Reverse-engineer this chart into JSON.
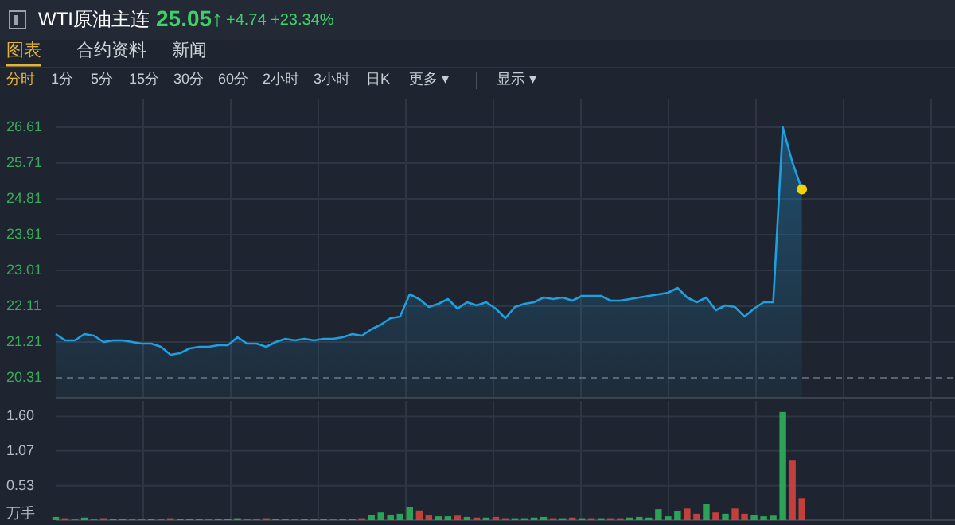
{
  "chart_data": [
    {
      "type": "area",
      "title": "WTI原油主连",
      "annotations": [
        "25.05↑",
        "+4.74",
        "+23.34%",
        "图表",
        "合约资料",
        "新闻",
        "分时",
        "1分",
        "5分",
        "15分",
        "30分",
        "60分",
        "2小时",
        "3小时",
        "日K",
        "更多 ▾",
        "显示 ▾"
      ],
      "categories": [
        null,
        null,
        null,
        null,
        null,
        null,
        null,
        null,
        null,
        null,
        null,
        null,
        null,
        null,
        null,
        null,
        null,
        null,
        null,
        null,
        null,
        null,
        null,
        null,
        null,
        null,
        null,
        null,
        null,
        null,
        null,
        null,
        null,
        null,
        null,
        null,
        null,
        null,
        null,
        null,
        null,
        null,
        null,
        null,
        null,
        null,
        null,
        null,
        null,
        null,
        null,
        null,
        null,
        null,
        null,
        null,
        null,
        null,
        null,
        null,
        null,
        null,
        null,
        null,
        null,
        null,
        null,
        null,
        null,
        null,
        null,
        null,
        null,
        null,
        null,
        null,
        null,
        null,
        null,
        null,
        null,
        null,
        null,
        null,
        null,
        null,
        null,
        null,
        null,
        null,
        null,
        null,
        null,
        null,
        null
      ],
      "series": [
        {
          "type": "area",
          "color": "#1e9fe0",
          "values": [
            21.41,
            21.25,
            21.25,
            21.41,
            21.37,
            21.21,
            21.25,
            21.25,
            21.21,
            21.17,
            21.17,
            21.09,
            20.89,
            20.93,
            21.05,
            21.09,
            21.09,
            21.13,
            21.13,
            21.33,
            21.17,
            21.17,
            21.09,
            21.21,
            21.29,
            21.25,
            21.29,
            21.25,
            21.29,
            21.29,
            21.33,
            21.41,
            21.37,
            21.53,
            21.65,
            21.81,
            21.85,
            22.41,
            22.29,
            22.09,
            22.17,
            22.29,
            22.05,
            22.21,
            22.13,
            22.21,
            22.05,
            21.81,
            22.09,
            22.17,
            22.21,
            22.33,
            22.29,
            22.33,
            22.25,
            22.37,
            22.37,
            22.37,
            22.25,
            22.25,
            22.29,
            22.33,
            22.37,
            22.41,
            22.45,
            22.57,
            22.33,
            22.21,
            22.33,
            22.01,
            22.13,
            22.09,
            21.85,
            22.05,
            22.21,
            22.21,
            26.61,
            25.73,
            25.05,
            null,
            null,
            null,
            null,
            null,
            null,
            null,
            null,
            null,
            null,
            null,
            null,
            null,
            null,
            null,
            null
          ]
        },
        {
          "type": "scatter",
          "color": "#f5d300",
          "values": [
            null,
            null,
            null,
            null,
            null,
            null,
            null,
            null,
            null,
            null,
            null,
            null,
            null,
            null,
            null,
            null,
            null,
            null,
            null,
            null,
            null,
            null,
            null,
            null,
            null,
            null,
            null,
            null,
            null,
            null,
            null,
            null,
            null,
            null,
            null,
            null,
            null,
            null,
            null,
            null,
            null,
            null,
            null,
            null,
            null,
            null,
            null,
            null,
            null,
            null,
            null,
            null,
            null,
            null,
            null,
            null,
            null,
            null,
            null,
            null,
            null,
            null,
            null,
            null,
            null,
            null,
            null,
            null,
            null,
            null,
            null,
            null,
            null,
            null,
            null,
            null,
            null,
            null,
            25.05,
            null,
            null,
            null,
            null,
            null,
            null,
            null,
            null,
            null,
            null,
            null,
            null,
            null,
            null,
            null,
            null
          ]
        }
      ],
      "ylim": [
        19.81,
        27.33
      ],
      "yticks": [
        20.31,
        21.21,
        22.11,
        23.01,
        23.91,
        24.81,
        25.71,
        26.61
      ],
      "ref_lines": [
        {
          "axis": "y",
          "value": 20.31,
          "line_style": "dashed",
          "color": "#5a6270"
        }
      ],
      "grid": true,
      "tick_labels": "y"
    },
    {
      "type": "bar",
      "categories": [
        null,
        null,
        null,
        null,
        null,
        null,
        null,
        null,
        null,
        null,
        null,
        null,
        null,
        null,
        null,
        null,
        null,
        null,
        null,
        null,
        null,
        null,
        null,
        null,
        null,
        null,
        null,
        null,
        null,
        null,
        null,
        null,
        null,
        null,
        null,
        null,
        null,
        null,
        null,
        null,
        null,
        null,
        null,
        null,
        null,
        null,
        null,
        null,
        null,
        null,
        null,
        null,
        null,
        null,
        null,
        null,
        null,
        null,
        null,
        null,
        null,
        null,
        null,
        null,
        null,
        null,
        null,
        null,
        null,
        null,
        null,
        null,
        null,
        null,
        null,
        null,
        null,
        null,
        null,
        null,
        null,
        null,
        null,
        null,
        null,
        null,
        null,
        null,
        null,
        null,
        null,
        null,
        null,
        null,
        null
      ],
      "values": [
        0.05,
        0.03,
        0.02,
        0.04,
        0.02,
        0.03,
        0.02,
        0.02,
        0.02,
        0.02,
        0.02,
        0.02,
        0.03,
        0.02,
        0.02,
        0.02,
        0.02,
        0.02,
        0.02,
        0.03,
        0.02,
        0.02,
        0.03,
        0.02,
        0.02,
        0.02,
        0.02,
        0.02,
        0.02,
        0.02,
        0.02,
        0.02,
        0.03,
        0.08,
        0.12,
        0.08,
        0.1,
        0.2,
        0.15,
        0.08,
        0.06,
        0.06,
        0.07,
        0.05,
        0.04,
        0.04,
        0.05,
        0.03,
        0.03,
        0.03,
        0.04,
        0.05,
        0.03,
        0.03,
        0.04,
        0.03,
        0.03,
        0.03,
        0.03,
        0.03,
        0.04,
        0.05,
        0.04,
        0.17,
        0.06,
        0.14,
        0.18,
        0.1,
        0.25,
        0.12,
        0.1,
        0.18,
        0.1,
        0.08,
        0.06,
        0.07,
        1.67,
        0.93,
        0.34,
        null,
        null,
        null,
        null,
        null,
        null,
        null,
        null,
        null,
        null,
        null,
        null,
        null,
        null,
        null,
        null
      ],
      "colors": [
        "#2dba5a",
        "#e0443e",
        "#e0443e",
        "#2dba5a",
        "#e0443e",
        "#e0443e",
        "#2dba5a",
        "#2dba5a",
        "#e0443e",
        "#e0443e",
        "#2dba5a",
        "#e0443e",
        "#e0443e",
        "#2dba5a",
        "#2dba5a",
        "#2dba5a",
        "#e0443e",
        "#2dba5a",
        "#2dba5a",
        "#2dba5a",
        "#e0443e",
        "#e0443e",
        "#e0443e",
        "#2dba5a",
        "#2dba5a",
        "#e0443e",
        "#2dba5a",
        "#e0443e",
        "#2dba5a",
        "#e0443e",
        "#2dba5a",
        "#2dba5a",
        "#e0443e",
        "#2dba5a",
        "#2dba5a",
        "#2dba5a",
        "#2dba5a",
        "#2dba5a",
        "#e0443e",
        "#e0443e",
        "#2dba5a",
        "#2dba5a",
        "#e0443e",
        "#2dba5a",
        "#e0443e",
        "#2dba5a",
        "#e0443e",
        "#e0443e",
        "#2dba5a",
        "#2dba5a",
        "#2dba5a",
        "#2dba5a",
        "#e0443e",
        "#2dba5a",
        "#e0443e",
        "#2dba5a",
        "#e0443e",
        "#2dba5a",
        "#e0443e",
        "#e0443e",
        "#2dba5a",
        "#2dba5a",
        "#2dba5a",
        "#2dba5a",
        "#2dba5a",
        "#2dba5a",
        "#e0443e",
        "#e0443e",
        "#2dba5a",
        "#e0443e",
        "#2dba5a",
        "#e0443e",
        "#e0443e",
        "#2dba5a",
        "#2dba5a",
        "#2dba5a",
        "#2dba5a",
        "#e0443e",
        "#e0443e",
        null,
        null,
        null,
        null,
        null,
        null,
        null,
        null,
        null,
        null,
        null,
        null,
        null,
        null,
        null,
        null
      ],
      "ylim": [
        0,
        1.84
      ],
      "yticks": [
        {
          "value": 0,
          "label": "万手"
        },
        0.53,
        1.07,
        {
          "value": 1.6,
          "label": "1.60"
        }
      ],
      "grid": true,
      "tick_labels": "y"
    }
  ]
}
